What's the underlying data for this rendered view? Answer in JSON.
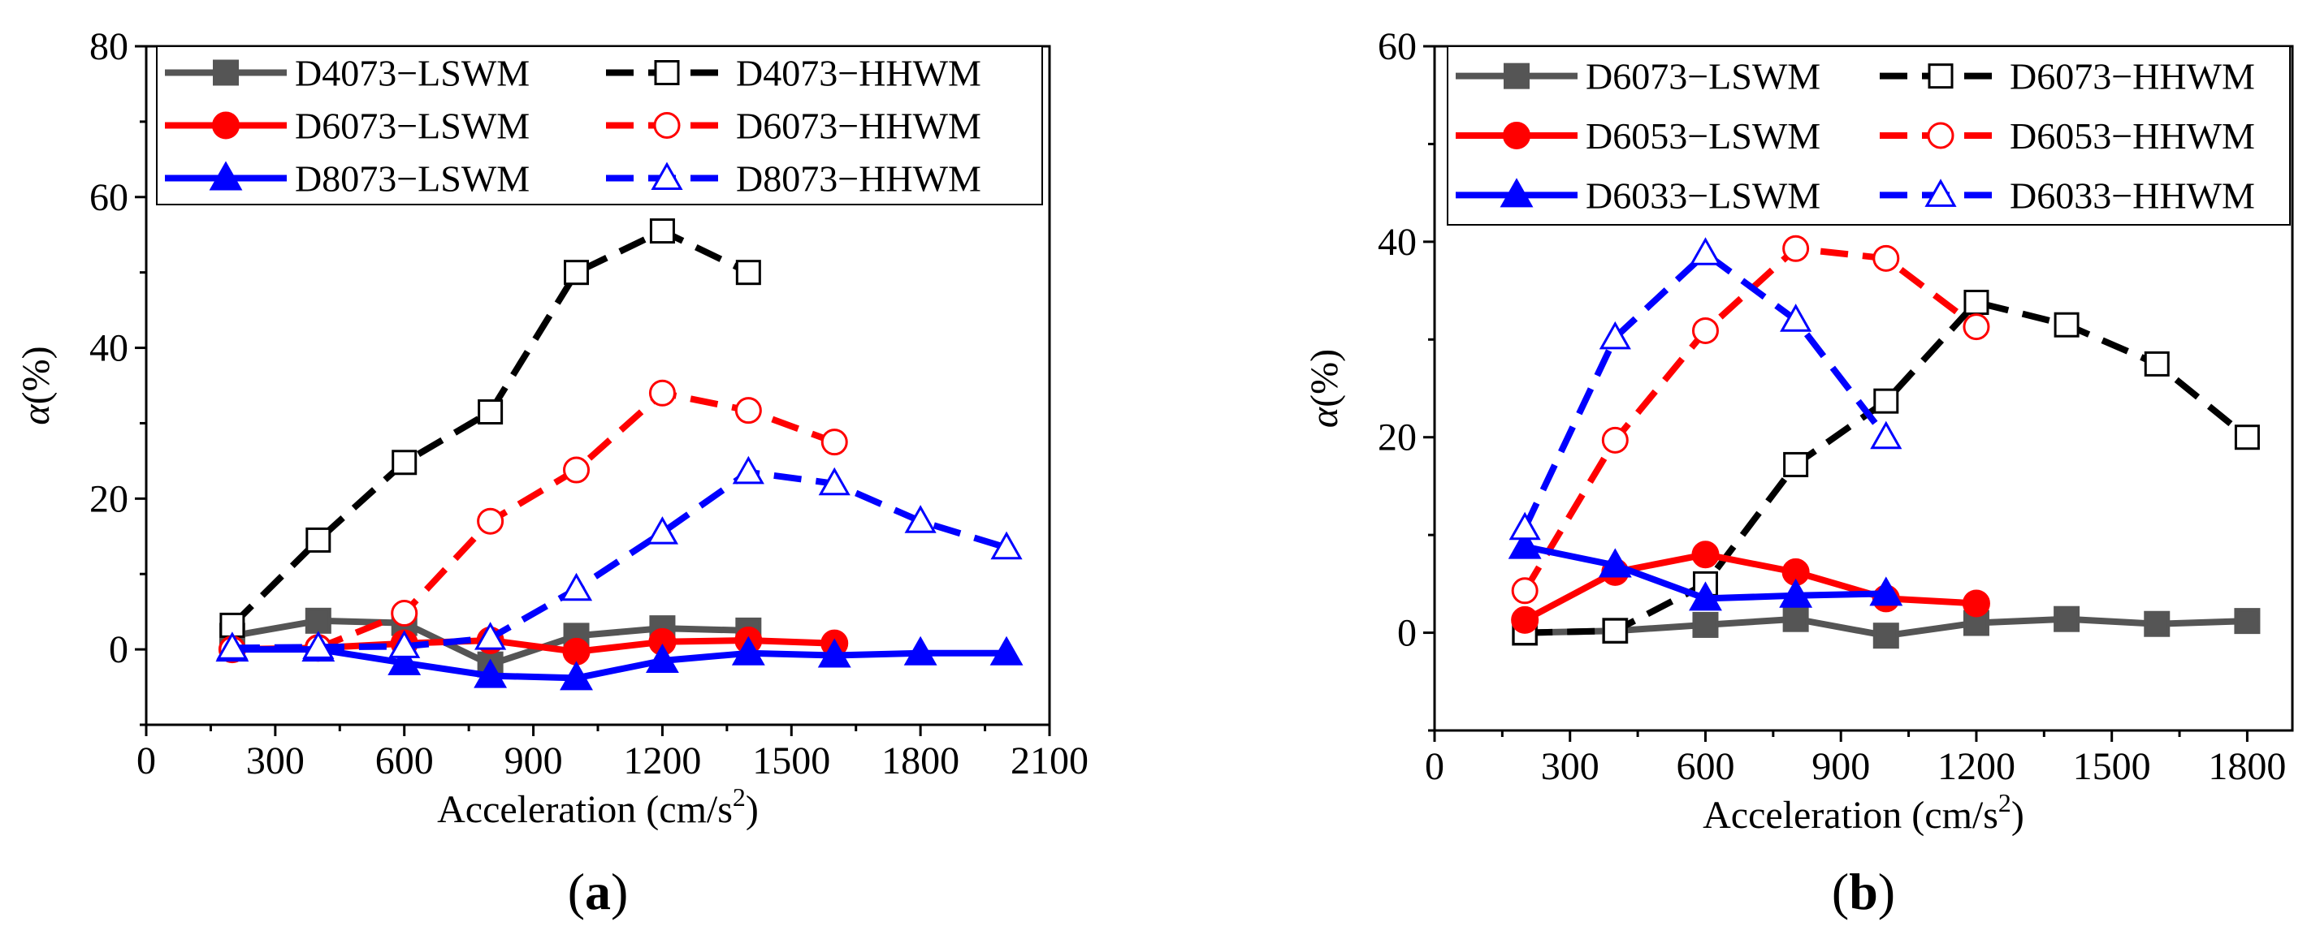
{
  "chart_data": [
    {
      "type": "line",
      "panel_label": "a",
      "xlabel": "Acceleration (cm/s",
      "xlabel_sup": "2",
      "ylabel_sym": "α",
      "ylabel_rest": "(%)",
      "xlim": [
        0,
        2100
      ],
      "ylim": [
        -10,
        80
      ],
      "xticks": [
        0,
        300,
        600,
        900,
        1200,
        1500,
        1800,
        2100
      ],
      "yticks": [
        0,
        20,
        40,
        60,
        80
      ],
      "series": [
        {
          "name": "D4073−LSWM",
          "color": "#555555",
          "dash": "solid",
          "marker": "square",
          "filled": true,
          "x": [
            200,
            400,
            600,
            800,
            1000,
            1200,
            1400
          ],
          "y": [
            1.8,
            3.8,
            3.5,
            -2,
            1.8,
            2.8,
            2.5
          ]
        },
        {
          "name": "D4073−HHWM",
          "color": "#000000",
          "dash": "dash",
          "marker": "square",
          "filled": false,
          "x": [
            200,
            400,
            600,
            800,
            1000,
            1200,
            1400
          ],
          "y": [
            3.2,
            14.5,
            24.8,
            31.5,
            50,
            55.5,
            50
          ]
        },
        {
          "name": "D6073−LSWM",
          "color": "#ff0000",
          "dash": "solid",
          "marker": "circle",
          "filled": true,
          "x": [
            200,
            400,
            600,
            800,
            1000,
            1200,
            1400,
            1600
          ],
          "y": [
            0,
            0.2,
            0.8,
            1.2,
            -0.3,
            1,
            1.2,
            0.8
          ]
        },
        {
          "name": "D6073−HHWM",
          "color": "#ff0000",
          "dash": "dash",
          "marker": "circle",
          "filled": false,
          "x": [
            200,
            400,
            600,
            800,
            1000,
            1200,
            1400,
            1600
          ],
          "y": [
            0,
            0.2,
            4.8,
            17,
            23.8,
            34,
            31.7,
            27.5
          ]
        },
        {
          "name": "D8073−LSWM",
          "color": "#0000ff",
          "dash": "solid",
          "marker": "triangle",
          "filled": true,
          "x": [
            200,
            400,
            600,
            800,
            1000,
            1200,
            1400,
            1600,
            1800,
            2000
          ],
          "y": [
            0,
            0,
            -1.8,
            -3.5,
            -3.8,
            -1.5,
            -0.5,
            -0.8,
            -0.5,
            -0.5
          ]
        },
        {
          "name": "D8073−HHWM",
          "color": "#0000ff",
          "dash": "dash",
          "marker": "triangle",
          "filled": false,
          "x": [
            200,
            400,
            600,
            800,
            1000,
            1200,
            1400,
            1600,
            1800,
            2000
          ],
          "y": [
            0.2,
            0.3,
            0.4,
            1.5,
            8,
            15.5,
            23.5,
            22,
            17,
            13.5
          ]
        }
      ]
    },
    {
      "type": "line",
      "panel_label": "b",
      "xlabel": "Acceleration (cm/s",
      "xlabel_sup": "2",
      "ylabel_sym": "α",
      "ylabel_rest": "(%)",
      "xlim": [
        0,
        1900
      ],
      "ylim": [
        -10,
        60
      ],
      "xticks": [
        0,
        300,
        600,
        900,
        1200,
        1500,
        1800
      ],
      "yticks": [
        0,
        20,
        40,
        60
      ],
      "series": [
        {
          "name": "D6073−LSWM",
          "color": "#555555",
          "dash": "solid",
          "marker": "square",
          "filled": true,
          "x": [
            200,
            400,
            600,
            800,
            1000,
            1200,
            1400,
            1600,
            1800
          ],
          "y": [
            0,
            0.2,
            0.8,
            1.4,
            -0.3,
            1,
            1.4,
            0.9,
            1.2
          ]
        },
        {
          "name": "D6073−HHWM",
          "color": "#000000",
          "dash": "dash",
          "marker": "square",
          "filled": false,
          "x": [
            200,
            400,
            600,
            800,
            1000,
            1200,
            1400,
            1600,
            1800
          ],
          "y": [
            0,
            0.2,
            5,
            17.2,
            23.7,
            33.8,
            31.5,
            27.5,
            20
          ]
        },
        {
          "name": "D6053−LSWM",
          "color": "#ff0000",
          "dash": "solid",
          "marker": "circle",
          "filled": true,
          "x": [
            200,
            400,
            600,
            800,
            1000,
            1200
          ],
          "y": [
            1.3,
            6.2,
            8,
            6.2,
            3.5,
            3
          ]
        },
        {
          "name": "D6053−HHWM",
          "color": "#ff0000",
          "dash": "dash",
          "marker": "circle",
          "filled": false,
          "x": [
            200,
            400,
            600,
            800,
            1000,
            1200
          ],
          "y": [
            4.3,
            19.7,
            30.9,
            39.3,
            38.3,
            31.3
          ]
        },
        {
          "name": "D6033−LSWM",
          "color": "#0000ff",
          "dash": "solid",
          "marker": "triangle",
          "filled": true,
          "x": [
            200,
            400,
            600,
            800,
            1000
          ],
          "y": [
            8.8,
            6.9,
            3.5,
            3.8,
            4
          ]
        },
        {
          "name": "D6033−HHWM",
          "color": "#0000ff",
          "dash": "dash",
          "marker": "triangle",
          "filled": false,
          "x": [
            200,
            400,
            600,
            800,
            1000
          ],
          "y": [
            10.7,
            30.2,
            38.8,
            32,
            20
          ]
        }
      ]
    }
  ]
}
